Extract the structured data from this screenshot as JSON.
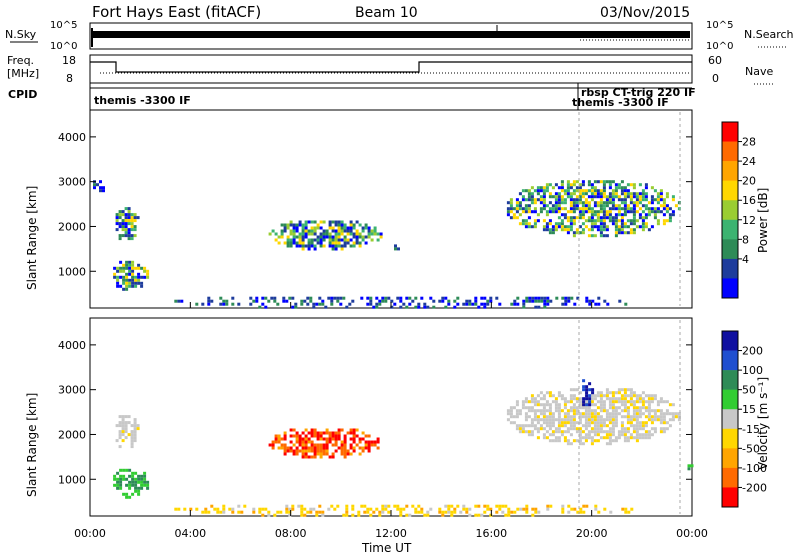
{
  "header": {
    "station": "Fort Hays East (fitACF)",
    "beam": "Beam 10",
    "date": "03/Nov/2015"
  },
  "noise_panel": {
    "left_label": "N.Sky",
    "right_label": "N.Search",
    "left_ticks": [
      "10^5",
      "10^0"
    ],
    "right_ticks": [
      "10^5",
      "10^0"
    ]
  },
  "freq_panel": {
    "left_label_1": "Freq.",
    "left_label_2": "[MHz]",
    "left_ticks": [
      "18",
      "8"
    ],
    "right_label": "Nave",
    "right_ticks": [
      "60",
      "0"
    ]
  },
  "cpid": {
    "label": "CPID",
    "annotations": [
      {
        "text": "themis -3300 IF",
        "time_h": 0.0
      },
      {
        "text": "rbsp CT-trig 220 IF",
        "time_h": 19.3
      },
      {
        "text": "themis -3300 IF",
        "time_h": 19.3
      }
    ]
  },
  "power_colorbar": {
    "label": "Power [dB]",
    "ticks": [
      "28",
      "24",
      "20",
      "16",
      "12",
      "8",
      "4"
    ],
    "colors": [
      "#ff0000",
      "#ff6a00",
      "#ffa500",
      "#ffd700",
      "#9acd32",
      "#3cb371",
      "#2e8b57",
      "#1e3c9c",
      "#0000ff"
    ]
  },
  "velocity_colorbar": {
    "label": "Velocity [m s⁻¹]",
    "ticks": [
      "200",
      "100",
      "50",
      "15",
      "-15",
      "-50",
      "-100",
      "-200"
    ],
    "colors": [
      "#1010a0",
      "#1f4fd0",
      "#2e8b57",
      "#32cd32",
      "#c8c8c8",
      "#ffd700",
      "#ffa500",
      "#ff6a00",
      "#ff0000"
    ]
  },
  "axes": {
    "ylabel": "Slant Range [km]",
    "xlabel": "Time UT",
    "yticks": [
      "4000",
      "3000",
      "2000",
      "1000"
    ],
    "xticks": [
      "00:00",
      "04:00",
      "08:00",
      "12:00",
      "16:00",
      "20:00",
      "00:00"
    ]
  },
  "chart_data": [
    {
      "type": "heatmap",
      "name": "Power",
      "xlabel": "Time UT",
      "ylabel": "Slant Range [km]",
      "xlim_hours": [
        0,
        24
      ],
      "ylim_km": [
        180,
        4600
      ],
      "regions": [
        {
          "t0": 0.8,
          "t1": 2.3,
          "r0": 600,
          "r1": 1300,
          "level": "mid"
        },
        {
          "t0": 0.9,
          "t1": 1.9,
          "r0": 1700,
          "r1": 2500,
          "level": "mid"
        },
        {
          "t0": 0.0,
          "t1": 0.5,
          "r0": 2700,
          "r1": 3100,
          "level": "low"
        },
        {
          "t0": 7.0,
          "t1": 11.6,
          "r0": 1500,
          "r1": 2200,
          "level": "mid"
        },
        {
          "t0": 12.0,
          "t1": 12.4,
          "r0": 1400,
          "r1": 1800,
          "level": "low"
        },
        {
          "t0": 16.5,
          "t1": 23.5,
          "r0": 1800,
          "r1": 3100,
          "level": "mid"
        },
        {
          "t0": 3.0,
          "t1": 22.0,
          "r0": 200,
          "r1": 500,
          "level": "low"
        }
      ]
    },
    {
      "type": "heatmap",
      "name": "Velocity",
      "xlabel": "Time UT",
      "ylabel": "Slant Range [km]",
      "xlim_hours": [
        0,
        24
      ],
      "ylim_km": [
        180,
        4600
      ],
      "regions": [
        {
          "t0": 0.8,
          "t1": 2.3,
          "r0": 600,
          "r1": 1300,
          "level": "50"
        },
        {
          "t0": 0.9,
          "t1": 1.9,
          "r0": 1700,
          "r1": 2500,
          "level": "0"
        },
        {
          "t0": 7.0,
          "t1": 11.6,
          "r0": 1500,
          "r1": 2200,
          "level": "-150"
        },
        {
          "t0": 16.5,
          "t1": 23.5,
          "r0": 1800,
          "r1": 3100,
          "level": "0"
        },
        {
          "t0": 19.5,
          "t1": 20.0,
          "r0": 2600,
          "r1": 3300,
          "level": "150"
        },
        {
          "t0": 23.7,
          "t1": 24.0,
          "r0": 1200,
          "r1": 1400,
          "level": "50"
        },
        {
          "t0": 3.0,
          "t1": 22.0,
          "r0": 200,
          "r1": 500,
          "level": "-30"
        }
      ]
    }
  ]
}
